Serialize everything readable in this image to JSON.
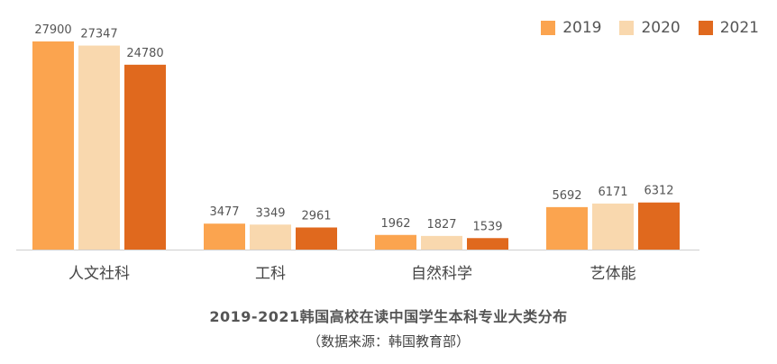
{
  "chart_data": {
    "type": "bar",
    "title": "2019-2021韩国高校在读中国学生本科专业大类分布",
    "subtitle": "（数据来源：韩国教育部）",
    "categories": [
      "人文社科",
      "工科",
      "自然科学",
      "艺体能"
    ],
    "series": [
      {
        "name": "2019",
        "color": "#FBA44F",
        "values": [
          27900,
          3477,
          1962,
          5692
        ]
      },
      {
        "name": "2020",
        "color": "#F9D8AE",
        "values": [
          27347,
          3349,
          1827,
          6171
        ]
      },
      {
        "name": "2021",
        "color": "#E0691E",
        "values": [
          24780,
          2961,
          1539,
          6312
        ]
      }
    ],
    "ylim": [
      0,
      27900
    ],
    "grid": false,
    "legend_position": "top-right",
    "xlabel": "",
    "ylabel": ""
  }
}
